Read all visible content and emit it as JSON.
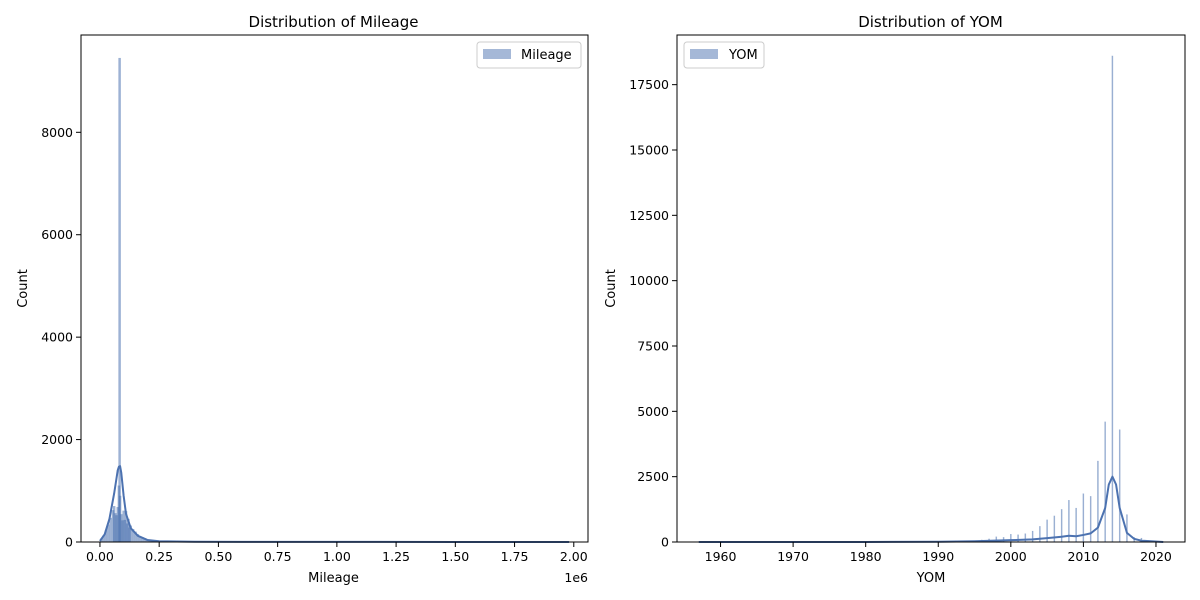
{
  "chart_data": [
    {
      "type": "histogram",
      "title": "Distribution of Mileage",
      "xlabel": "Mileage",
      "ylabel": "Count",
      "x_offset_label": "1e6",
      "xlim": [
        -80000,
        2060000
      ],
      "ylim": [
        0,
        9900
      ],
      "xticks": [
        0,
        250000,
        500000,
        750000,
        1000000,
        1250000,
        1500000,
        1750000,
        2000000
      ],
      "xtick_labels": [
        "0.00",
        "0.25",
        "0.50",
        "0.75",
        "1.00",
        "1.25",
        "1.50",
        "1.75",
        "2.00"
      ],
      "yticks": [
        0,
        2000,
        4000,
        6000,
        8000
      ],
      "ytick_labels": [
        "0",
        "2000",
        "4000",
        "6000",
        "8000"
      ],
      "legend": {
        "label": "Mileage",
        "placement": "top-right"
      },
      "series": [
        {
          "name": "Mileage",
          "kind": "bars",
          "x": [
            5000,
            15000,
            25000,
            35000,
            45000,
            55000,
            60000,
            65000,
            70000,
            75000,
            80000,
            83000,
            85000,
            90000,
            95000,
            100000,
            105000,
            110000,
            115000,
            120000,
            125000,
            130000,
            140000,
            150000,
            160000,
            170000,
            180000,
            190000,
            200000,
            210000,
            220000,
            230000,
            240000,
            250000,
            270000,
            290000,
            320000,
            350000
          ],
          "values": [
            60,
            120,
            220,
            340,
            470,
            620,
            700,
            560,
            520,
            680,
            1100,
            9450,
            900,
            540,
            420,
            610,
            430,
            600,
            360,
            450,
            280,
            320,
            250,
            200,
            150,
            110,
            90,
            70,
            50,
            40,
            30,
            25,
            20,
            18,
            12,
            10,
            6,
            4
          ]
        },
        {
          "name": "KDE",
          "kind": "line",
          "x": [
            0,
            20000,
            40000,
            60000,
            70000,
            75000,
            80000,
            85000,
            90000,
            100000,
            110000,
            130000,
            160000,
            200000,
            250000,
            400000,
            600000,
            1000000,
            1500000,
            1980000
          ],
          "values": [
            20,
            150,
            450,
            950,
            1250,
            1400,
            1470,
            1480,
            1350,
            900,
            550,
            270,
            120,
            40,
            15,
            5,
            3,
            2,
            1,
            0
          ]
        }
      ]
    },
    {
      "type": "histogram",
      "title": "Distribution of YOM",
      "xlabel": "YOM",
      "ylabel": "Count",
      "xlim": [
        1954,
        2024
      ],
      "ylim": [
        0,
        19400
      ],
      "xticks": [
        1960,
        1970,
        1980,
        1990,
        2000,
        2010,
        2020
      ],
      "xtick_labels": [
        "1960",
        "1970",
        "1980",
        "1990",
        "2000",
        "2010",
        "2020"
      ],
      "yticks": [
        0,
        2500,
        5000,
        7500,
        10000,
        12500,
        15000,
        17500
      ],
      "ytick_labels": [
        "0",
        "2500",
        "5000",
        "7500",
        "10000",
        "12500",
        "15000",
        "17500"
      ],
      "legend": {
        "label": "YOM",
        "placement": "top-left"
      },
      "series": [
        {
          "name": "YOM",
          "kind": "bars",
          "x": [
            1990,
            1993,
            1995,
            1996,
            1997,
            1998,
            1999,
            2000,
            2001,
            2002,
            2003,
            2004,
            2005,
            2006,
            2007,
            2008,
            2009,
            2010,
            2011,
            2012,
            2013,
            2014,
            2015,
            2016,
            2017,
            2018,
            2019,
            2020
          ],
          "values": [
            20,
            30,
            50,
            80,
            120,
            200,
            180,
            300,
            280,
            320,
            420,
            600,
            850,
            1000,
            1250,
            1600,
            1300,
            1850,
            1750,
            3100,
            4600,
            18600,
            4300,
            1050,
            180,
            150,
            60,
            20
          ]
        },
        {
          "name": "KDE",
          "kind": "line",
          "x": [
            1957,
            1970,
            1980,
            1990,
            1995,
            2000,
            2003,
            2005,
            2007,
            2008,
            2009,
            2010,
            2011,
            2012,
            2013,
            2013.5,
            2014,
            2014.5,
            2015,
            2016,
            2017,
            2018,
            2021
          ],
          "values": [
            0,
            0,
            0,
            10,
            30,
            70,
            100,
            150,
            200,
            240,
            220,
            270,
            330,
            550,
            1300,
            2200,
            2500,
            2200,
            1300,
            350,
            120,
            50,
            0
          ]
        }
      ]
    }
  ],
  "colors": {
    "bar": "#4c72b0",
    "line": "#4c72b0"
  }
}
